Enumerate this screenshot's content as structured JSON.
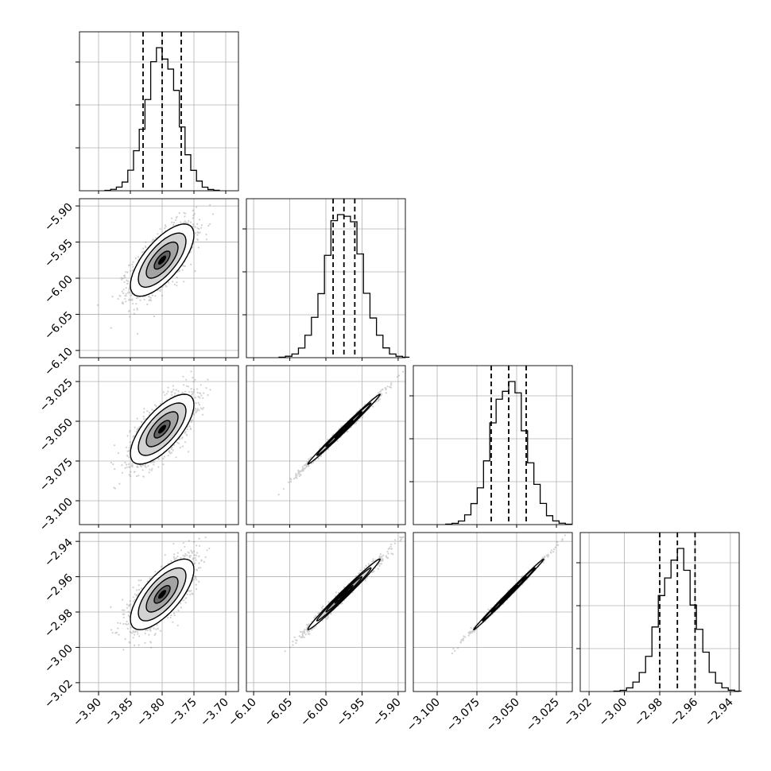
{
  "chart_data": {
    "type": "corner",
    "n_params": 4,
    "param_labels": [
      "",
      "",
      "",
      ""
    ],
    "params": [
      {
        "range": [
          -3.93,
          -3.68
        ],
        "ticks": [
          -3.9,
          -3.85,
          -3.8,
          -3.75,
          -3.7
        ],
        "tick_labels": [
          "−3.90",
          "−3.85",
          "−3.80",
          "−3.75",
          "−3.70"
        ],
        "mean": -3.8,
        "sigma": 0.025,
        "quantiles": [
          -3.83,
          -3.8,
          -3.77
        ]
      },
      {
        "range": [
          -6.11,
          -5.89
        ],
        "ticks": [
          -6.1,
          -6.05,
          -6.0,
          -5.95,
          -5.9
        ],
        "tick_labels": [
          "−6.10",
          "−6.05",
          "−6.00",
          "−5.95",
          "−5.90"
        ],
        "mean": -5.975,
        "sigma": 0.025,
        "quantiles": [
          -5.99,
          -5.975,
          -5.96
        ]
      },
      {
        "range": [
          -3.115,
          -3.015
        ],
        "ticks": [
          -3.1,
          -3.075,
          -3.05,
          -3.025
        ],
        "tick_labels": [
          "−3.100",
          "−3.075",
          "−3.050",
          "−3.025"
        ],
        "mean": -3.055,
        "sigma": 0.011,
        "quantiles": [
          -3.066,
          -3.055,
          -3.044
        ]
      },
      {
        "range": [
          -3.025,
          -2.935
        ],
        "ticks": [
          -3.02,
          -3.0,
          -2.98,
          -2.96,
          -2.94
        ],
        "tick_labels": [
          "−3.02",
          "−3.00",
          "−2.98",
          "−2.96",
          "−2.94"
        ],
        "mean": -2.97,
        "sigma": 0.01,
        "quantiles": [
          -2.98,
          -2.97,
          -2.96
        ]
      }
    ],
    "correlation": [
      [
        1.0,
        0.7,
        0.7,
        0.7
      ],
      [
        0.7,
        1.0,
        0.995,
        0.99
      ],
      [
        0.7,
        0.995,
        1.0,
        0.997
      ],
      [
        0.7,
        0.99,
        0.997,
        1.0
      ]
    ],
    "histogram_bins": 20,
    "contour_levels": [
      0.5,
      1.0,
      1.5,
      2.0
    ],
    "grid": true,
    "colors": {
      "points": "#7a7a7a",
      "lines": "#000000",
      "grid": "#b0b0b0"
    }
  }
}
